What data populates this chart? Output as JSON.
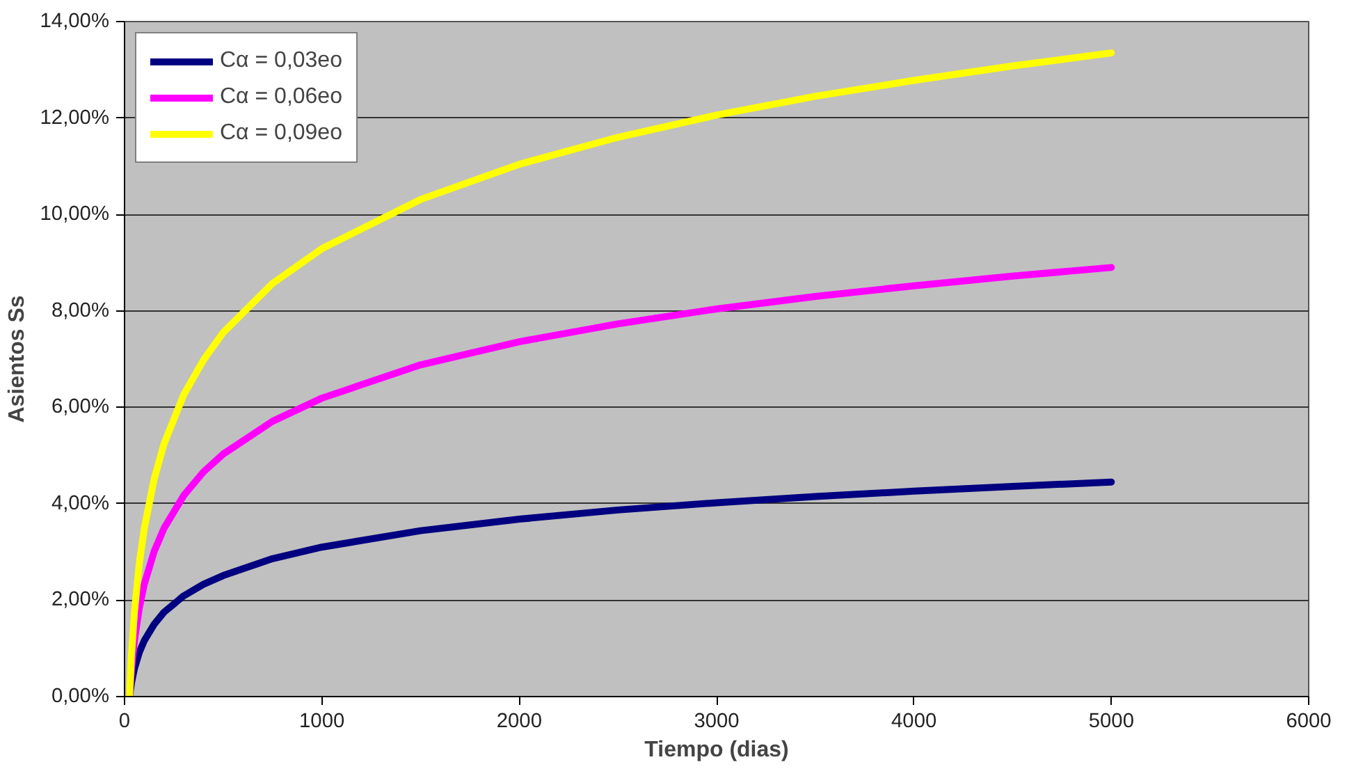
{
  "chart_data": {
    "type": "line",
    "xlabel": "Tiempo (dias)",
    "ylabel": "Asientos Ss",
    "x": [
      25,
      35,
      50,
      75,
      100,
      150,
      200,
      300,
      400,
      500,
      750,
      1000,
      1500,
      2000,
      2500,
      3000,
      3500,
      4000,
      4500,
      5000
    ],
    "series": [
      {
        "name": "Cα = 0,03eo",
        "color": "#000080",
        "values": [
          0,
          0.28,
          0.58,
          0.92,
          1.16,
          1.5,
          1.75,
          2.09,
          2.33,
          2.51,
          2.86,
          3.1,
          3.44,
          3.68,
          3.87,
          4.02,
          4.15,
          4.26,
          4.36,
          4.45
        ]
      },
      {
        "name": "Cα = 0,06eo",
        "color": "#ff00ff",
        "values": [
          0,
          0.56,
          1.16,
          1.84,
          2.33,
          3.01,
          3.49,
          4.17,
          4.66,
          5.03,
          5.71,
          6.19,
          6.88,
          7.36,
          7.73,
          8.04,
          8.3,
          8.52,
          8.72,
          8.9
        ]
      },
      {
        "name": "Cα = 0,09eo",
        "color": "#ffff00",
        "values": [
          0,
          0.85,
          1.75,
          2.77,
          3.49,
          4.51,
          5.24,
          6.26,
          6.98,
          7.55,
          8.57,
          9.29,
          10.31,
          11.04,
          11.6,
          12.06,
          12.45,
          12.78,
          13.08,
          13.35
        ]
      }
    ],
    "xlim": [
      0,
      6000
    ],
    "xticks": [
      0,
      1000,
      2000,
      3000,
      4000,
      5000,
      6000
    ],
    "ylim": [
      0,
      14
    ],
    "yticks": [
      {
        "value": 0,
        "label": "0,00%"
      },
      {
        "value": 2,
        "label": "2,00%"
      },
      {
        "value": 4,
        "label": "4,00%"
      },
      {
        "value": 6,
        "label": "6,00%"
      },
      {
        "value": 8,
        "label": "8,00%"
      },
      {
        "value": 10,
        "label": "10,00%"
      },
      {
        "value": 12,
        "label": "12,00%"
      },
      {
        "value": 14,
        "label": "14,00%"
      }
    ],
    "grid": "y",
    "legend": "top left",
    "marker": "none",
    "line_style": "solid"
  }
}
